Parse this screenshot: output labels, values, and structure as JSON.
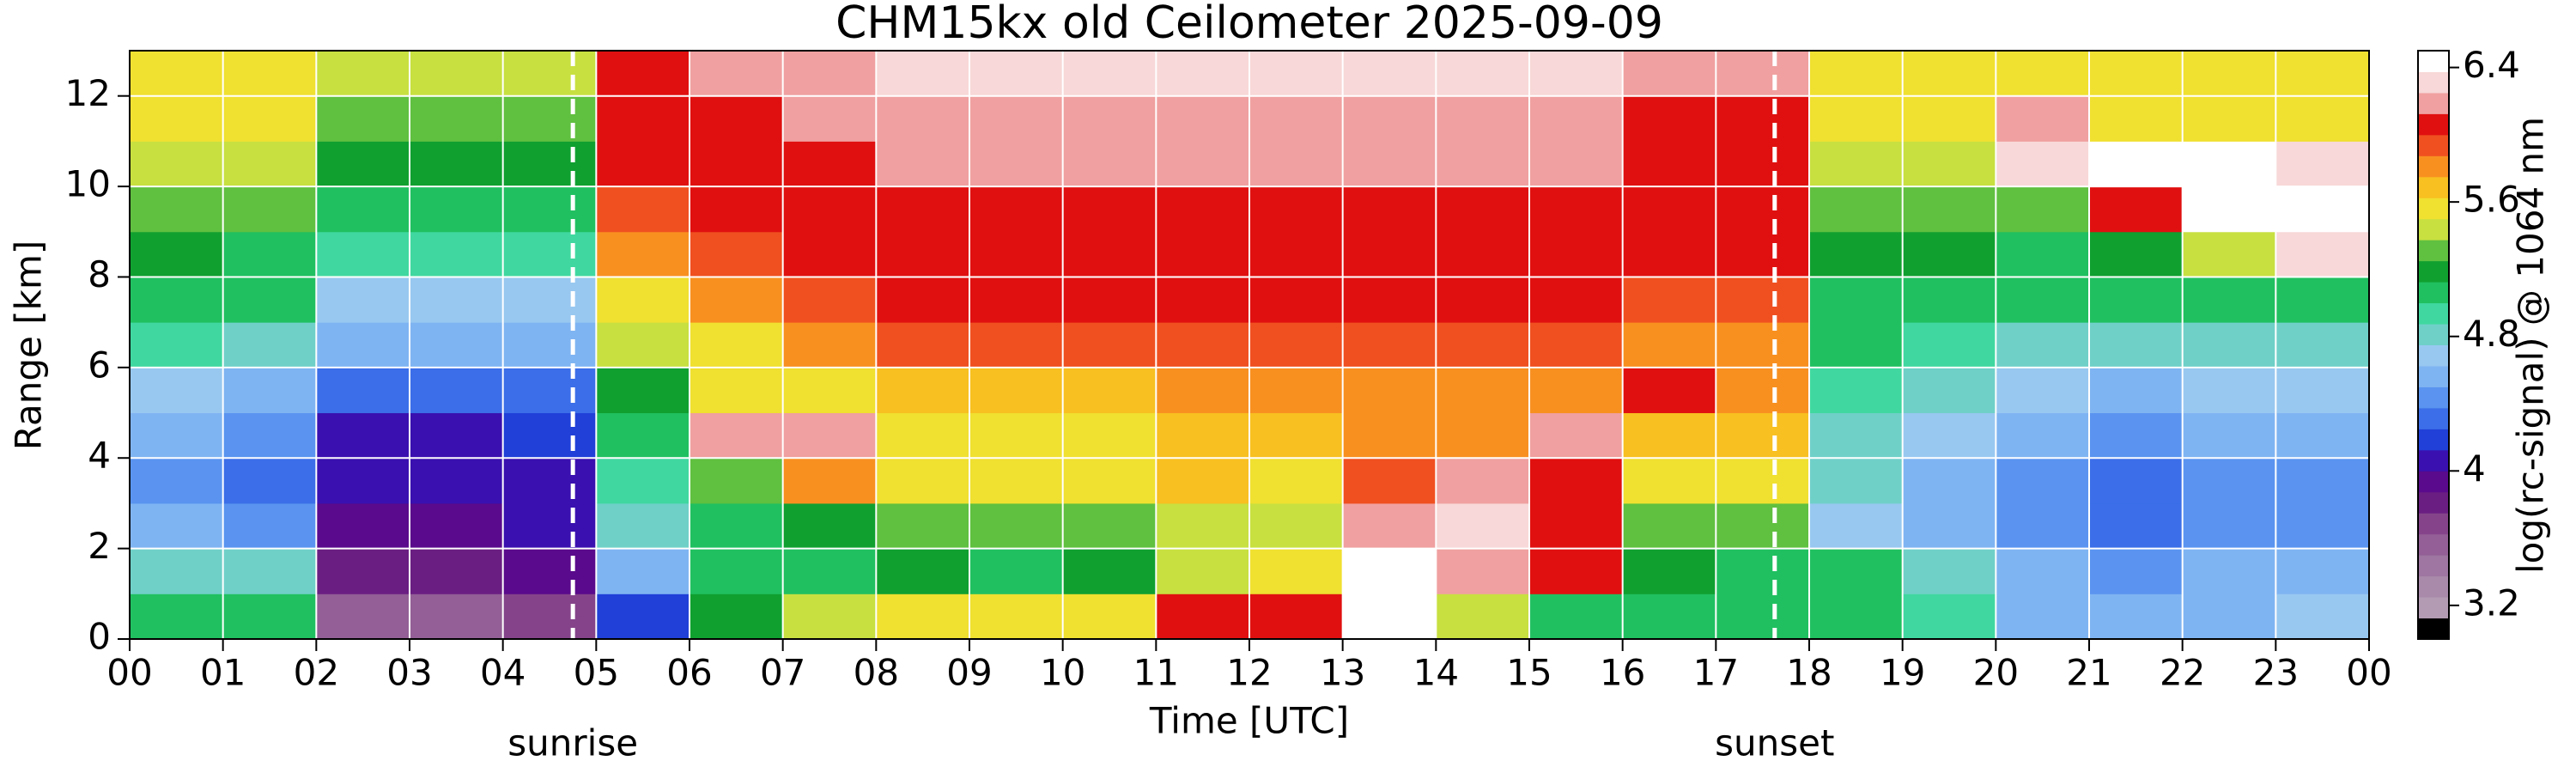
{
  "chart_data": {
    "type": "heatmap",
    "title": "CHM15kx old Ceilometer 2025-09-09",
    "x_label": "Time [UTC]",
    "y_label": "Range [km]",
    "colorbar_label": "log(rc-signal) @ 1064 nm",
    "x_edges": [
      0,
      1,
      2,
      3,
      4,
      5,
      6,
      7,
      8,
      9,
      10,
      11,
      12,
      13,
      14,
      15,
      16,
      17,
      18,
      19,
      20,
      21,
      22,
      23,
      24
    ],
    "y_edges": [
      0,
      1,
      2,
      3,
      4,
      5,
      6,
      7,
      8,
      9,
      10,
      11,
      12,
      13
    ],
    "z": [
      [
        5.0,
        5.0,
        3.6,
        3.6,
        3.7,
        4.2,
        5.2,
        5.4,
        5.6,
        5.5,
        5.6,
        6.0,
        6.1,
        6.5,
        5.4,
        5.0,
        5.0,
        5.0,
        5.0,
        4.9,
        4.6,
        4.5,
        4.6,
        4.7
      ],
      [
        4.8,
        4.8,
        3.8,
        3.8,
        3.9,
        4.6,
        5.0,
        5.1,
        5.2,
        5.1,
        5.2,
        5.4,
        5.6,
        6.5,
        6.2,
        6.0,
        5.2,
        5.1,
        5.0,
        4.8,
        4.5,
        4.4,
        4.5,
        4.5
      ],
      [
        4.5,
        4.4,
        3.9,
        3.9,
        4.0,
        4.8,
        5.1,
        5.2,
        5.3,
        5.3,
        5.3,
        5.4,
        5.4,
        6.2,
        6.3,
        6.0,
        5.3,
        5.3,
        4.7,
        4.6,
        4.4,
        4.3,
        4.4,
        4.4
      ],
      [
        4.4,
        4.3,
        4.0,
        4.0,
        4.1,
        4.9,
        5.3,
        5.8,
        5.5,
        5.5,
        5.5,
        5.7,
        5.6,
        5.9,
        6.2,
        6.1,
        5.5,
        5.5,
        4.8,
        4.6,
        4.4,
        4.3,
        4.4,
        4.4
      ],
      [
        4.5,
        4.4,
        4.1,
        4.1,
        4.2,
        5.0,
        6.2,
        6.2,
        5.6,
        5.6,
        5.6,
        5.7,
        5.7,
        5.8,
        5.8,
        6.2,
        5.7,
        5.7,
        4.8,
        4.7,
        4.5,
        4.4,
        4.5,
        4.5
      ],
      [
        4.7,
        4.6,
        4.3,
        4.3,
        4.3,
        5.2,
        5.5,
        5.6,
        5.7,
        5.7,
        5.7,
        5.8,
        5.8,
        5.8,
        5.8,
        5.8,
        6.1,
        5.8,
        4.9,
        4.8,
        4.7,
        4.6,
        4.7,
        4.7
      ],
      [
        4.9,
        4.8,
        4.5,
        4.5,
        4.5,
        5.4,
        5.6,
        5.8,
        5.9,
        5.9,
        5.9,
        5.9,
        5.9,
        5.9,
        5.9,
        5.9,
        5.8,
        5.8,
        5.0,
        4.9,
        4.8,
        4.8,
        4.8,
        4.8
      ],
      [
        5.0,
        5.0,
        4.7,
        4.7,
        4.7,
        5.6,
        5.8,
        5.9,
        6.0,
        6.0,
        6.0,
        6.0,
        6.0,
        6.0,
        6.0,
        6.0,
        5.9,
        5.9,
        5.1,
        5.0,
        5.0,
        5.0,
        5.0,
        5.0
      ],
      [
        5.2,
        5.1,
        4.9,
        4.9,
        4.9,
        5.8,
        5.9,
        6.0,
        6.1,
        6.1,
        6.1,
        6.1,
        6.1,
        6.1,
        6.1,
        6.1,
        6.0,
        6.0,
        5.2,
        5.2,
        5.1,
        5.2,
        5.4,
        6.3
      ],
      [
        5.3,
        5.3,
        5.0,
        5.0,
        5.0,
        5.9,
        6.0,
        6.1,
        6.1,
        6.1,
        6.1,
        6.1,
        6.1,
        6.1,
        6.1,
        6.1,
        6.1,
        6.0,
        5.3,
        5.3,
        5.3,
        6.1,
        6.4,
        6.4
      ],
      [
        5.4,
        5.4,
        5.2,
        5.2,
        5.2,
        6.0,
        6.1,
        6.1,
        6.2,
        6.2,
        6.2,
        6.2,
        6.2,
        6.2,
        6.2,
        6.2,
        6.1,
        6.1,
        5.4,
        5.4,
        6.3,
        6.4,
        6.4,
        6.3
      ],
      [
        5.5,
        5.5,
        5.3,
        5.3,
        5.3,
        6.0,
        6.1,
        6.2,
        6.2,
        6.2,
        6.2,
        6.2,
        6.2,
        6.2,
        6.2,
        6.2,
        6.1,
        6.1,
        5.5,
        5.5,
        6.2,
        5.5,
        5.5,
        5.5
      ],
      [
        5.6,
        5.6,
        5.4,
        5.4,
        5.4,
        6.1,
        6.2,
        6.2,
        6.3,
        6.3,
        6.3,
        6.3,
        6.3,
        6.3,
        6.3,
        6.3,
        6.2,
        6.2,
        5.6,
        5.6,
        5.6,
        5.6,
        5.6,
        5.6
      ]
    ],
    "xlim": [
      0,
      24
    ],
    "ylim": [
      0,
      13
    ],
    "xticks": [
      {
        "value": 0,
        "label": "00"
      },
      {
        "value": 1,
        "label": "01"
      },
      {
        "value": 2,
        "label": "02"
      },
      {
        "value": 3,
        "label": "03"
      },
      {
        "value": 4,
        "label": "04"
      },
      {
        "value": 5,
        "label": "05"
      },
      {
        "value": 6,
        "label": "06"
      },
      {
        "value": 7,
        "label": "07"
      },
      {
        "value": 8,
        "label": "08"
      },
      {
        "value": 9,
        "label": "09"
      },
      {
        "value": 10,
        "label": "10"
      },
      {
        "value": 11,
        "label": "11"
      },
      {
        "value": 12,
        "label": "12"
      },
      {
        "value": 13,
        "label": "13"
      },
      {
        "value": 14,
        "label": "14"
      },
      {
        "value": 15,
        "label": "15"
      },
      {
        "value": 16,
        "label": "16"
      },
      {
        "value": 17,
        "label": "17"
      },
      {
        "value": 18,
        "label": "18"
      },
      {
        "value": 19,
        "label": "19"
      },
      {
        "value": 20,
        "label": "20"
      },
      {
        "value": 21,
        "label": "21"
      },
      {
        "value": 22,
        "label": "22"
      },
      {
        "value": 23,
        "label": "23"
      },
      {
        "value": 24,
        "label": "00"
      }
    ],
    "yticks": [
      0,
      2,
      4,
      6,
      8,
      10,
      12
    ],
    "grid": true,
    "clim": [
      3.0,
      6.5
    ],
    "cticks": [
      3.2,
      4,
      4.8,
      5.6,
      6.4
    ],
    "colormap": [
      "#000000",
      "#b39cb3",
      "#a98aab",
      "#9e76a1",
      "#935f96",
      "#85448a",
      "#6a1e82",
      "#5a0a8c",
      "#3a10b0",
      "#2040d8",
      "#3b6ee8",
      "#5a94f0",
      "#7fb4f2",
      "#98c8f0",
      "#6fd0c8",
      "#40d8a0",
      "#20c060",
      "#10a030",
      "#60c040",
      "#c8e040",
      "#f0e030",
      "#f8c020",
      "#f89020",
      "#f05020",
      "#e01010",
      "#f0a0a0",
      "#f8d8d8",
      "#ffffff"
    ],
    "annotations": [
      {
        "x": 4.75,
        "label": "sunrise"
      },
      {
        "x": 17.63,
        "label": "sunset"
      }
    ]
  }
}
